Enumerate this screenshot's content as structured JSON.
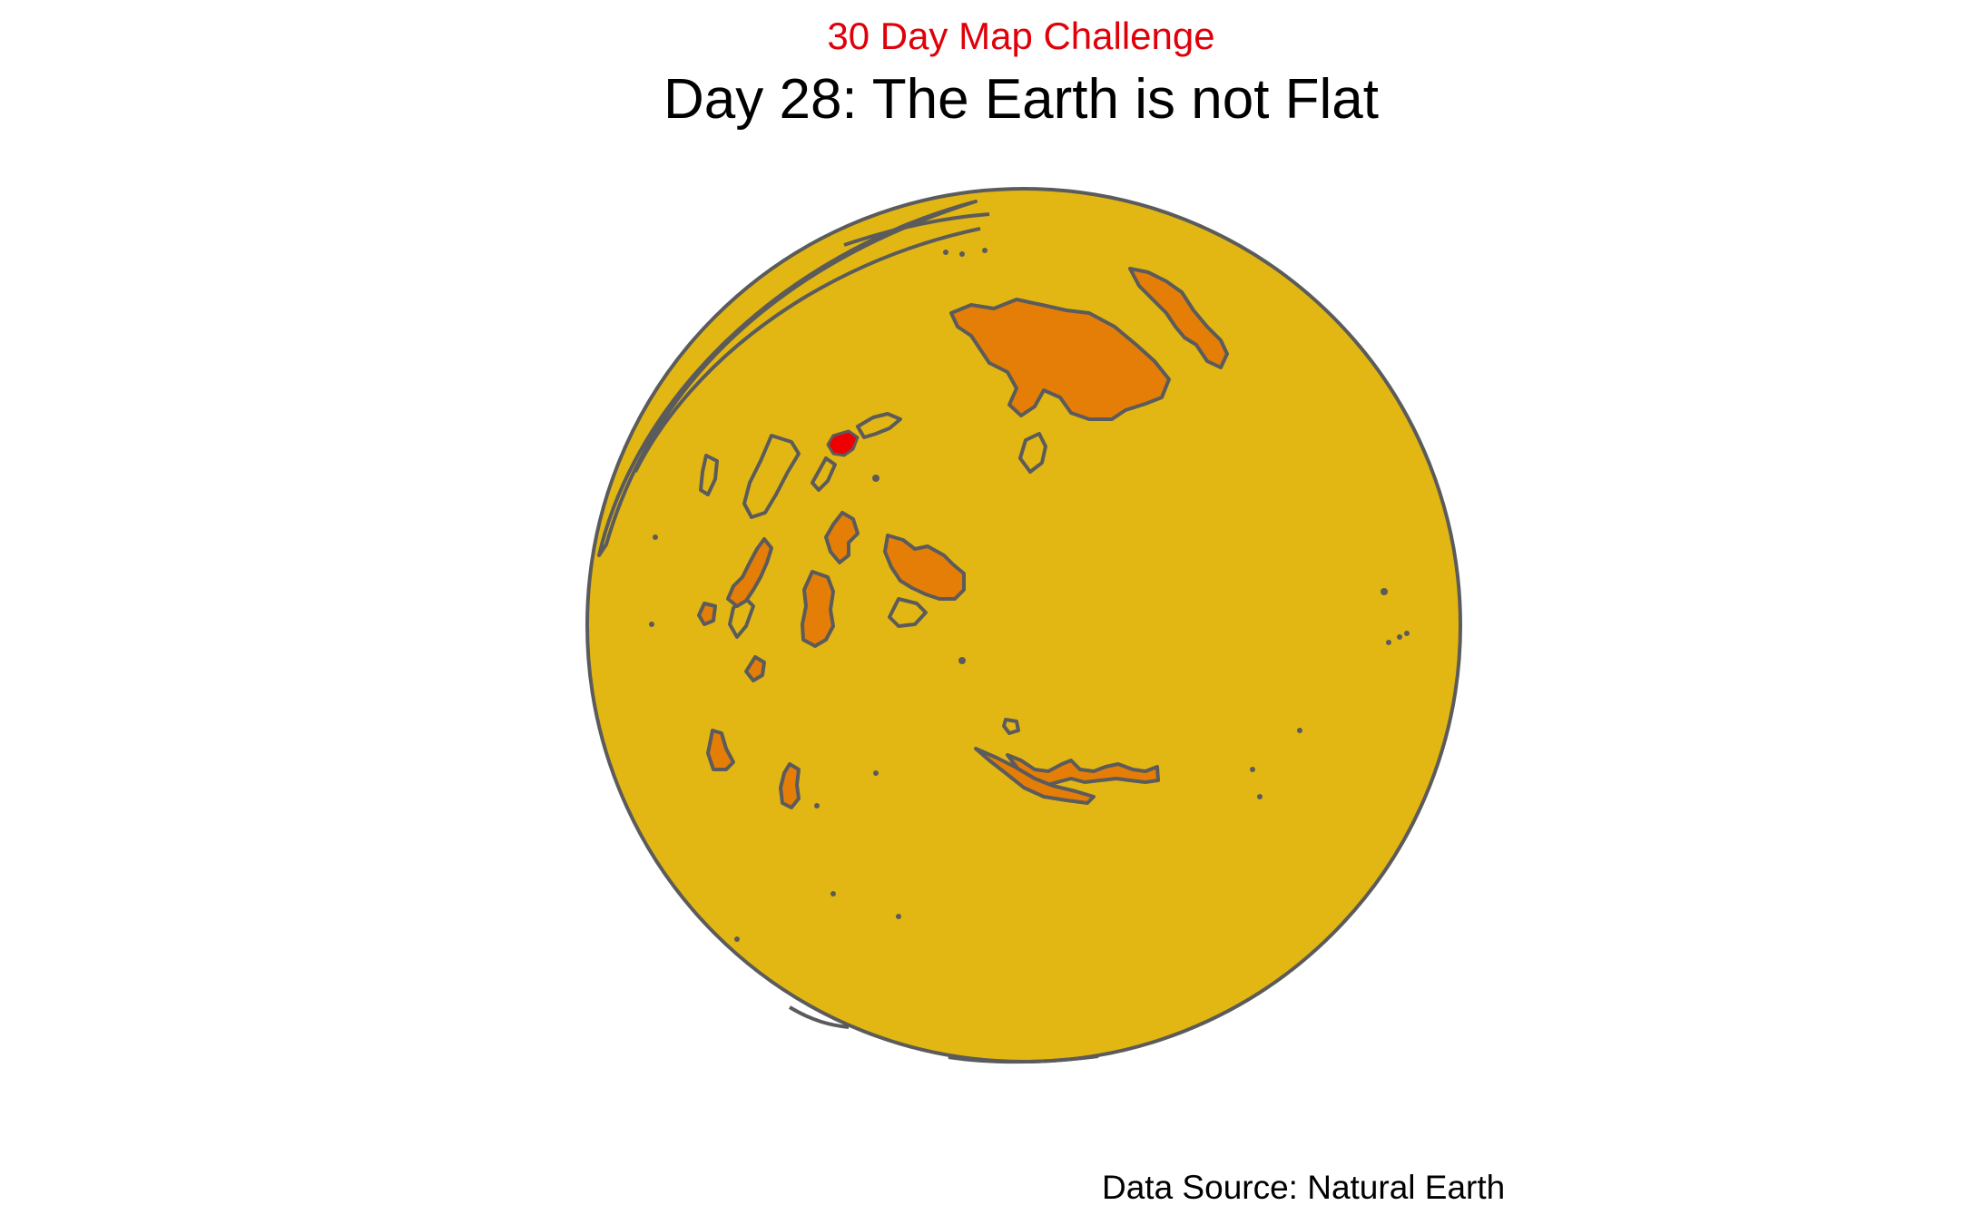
{
  "header": {
    "subtitle": "30 Day Map Challenge",
    "title": "Day 28: The Earth is not Flat"
  },
  "caption": "Data Source: Natural Earth",
  "map": {
    "projection": "orthographic",
    "colors": {
      "globe_fill": "#e2b714",
      "outline": "#5b5b5b",
      "land_highlight": "#e57e07",
      "land_focus": "#ee0000",
      "subtitle": "#e0000a"
    }
  }
}
